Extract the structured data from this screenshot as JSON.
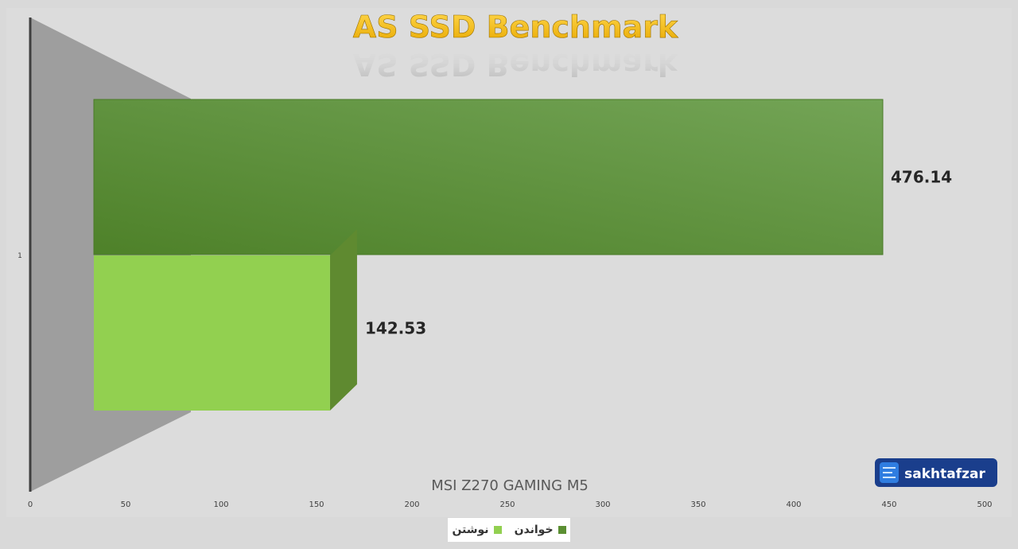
{
  "chart_data": {
    "type": "bar",
    "orientation": "horizontal",
    "title": "AS SSD Benchmark",
    "xlabel": "MSI Z270 GAMING M5",
    "ylabel": "",
    "categories": [
      "1"
    ],
    "xlim": [
      0,
      500
    ],
    "x_ticks": [
      "0",
      "50",
      "100",
      "150",
      "200",
      "250",
      "300",
      "350",
      "400",
      "450",
      "500"
    ],
    "grid": false,
    "legend_position": "bottom",
    "series": [
      {
        "name": "خواندن",
        "values": [
          476.14
        ],
        "label": "476.14",
        "color": "#5b8f32"
      },
      {
        "name": "نوشتن",
        "values": [
          142.53
        ],
        "label": "142.53",
        "color": "#92d050"
      }
    ]
  },
  "watermark": {
    "text": "sakhtafzar",
    "icon": "circuit-chip-icon"
  },
  "colors": {
    "background": "#d9d9d9",
    "plot_area": "#dcdcdc",
    "title_fill": "#f5b800",
    "wall": "#9e9e9e"
  }
}
